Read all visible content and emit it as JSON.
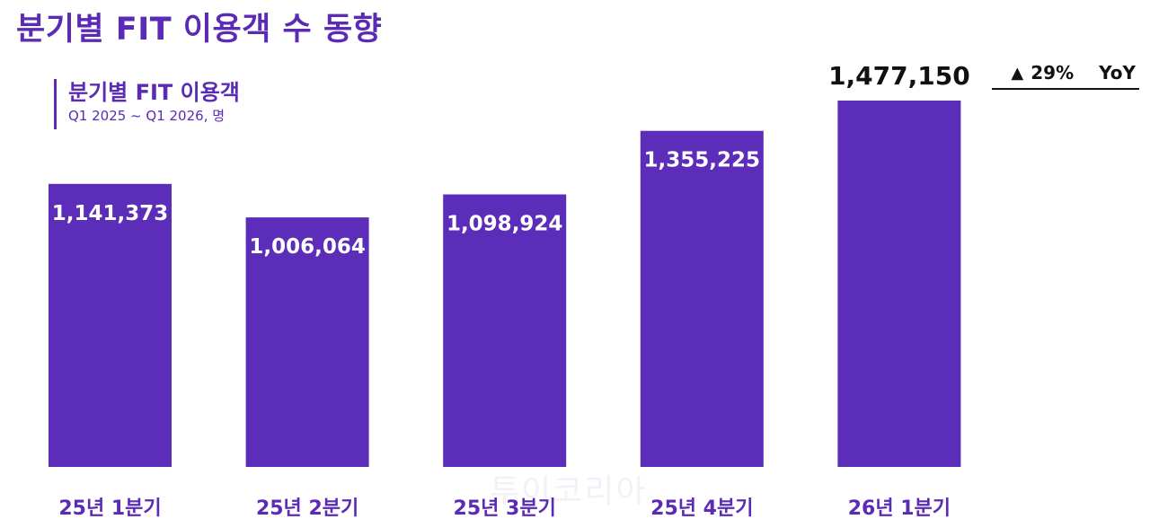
{
  "header": {
    "title": "분기별 FIT 이용객 수 동향"
  },
  "yoy": {
    "arrow": "▲",
    "change": "29%",
    "label": "YoY"
  },
  "colors": {
    "accent": "#5b2bb5",
    "bar": "#5c2db8",
    "highlight_text": "#111111"
  },
  "watermark": "투이코리아",
  "chart_data": {
    "type": "bar",
    "title": "분기별 FIT 이용객",
    "subtitle": "Q1 2025 ~ Q1 2026, 명",
    "categories": [
      "25년 1분기",
      "25년 2분기",
      "25년 3분기",
      "25년 4분기",
      "26년 1분기"
    ],
    "values": [
      1141373,
      1006064,
      1098924,
      1355225,
      1477150
    ],
    "value_labels": [
      "1,141,373",
      "1,006,064",
      "1,098,924",
      "1,355,225",
      "1,477,150"
    ],
    "highlight_index": 4,
    "ylim": [
      0,
      1575000
    ],
    "grid": false,
    "legend": "none"
  }
}
